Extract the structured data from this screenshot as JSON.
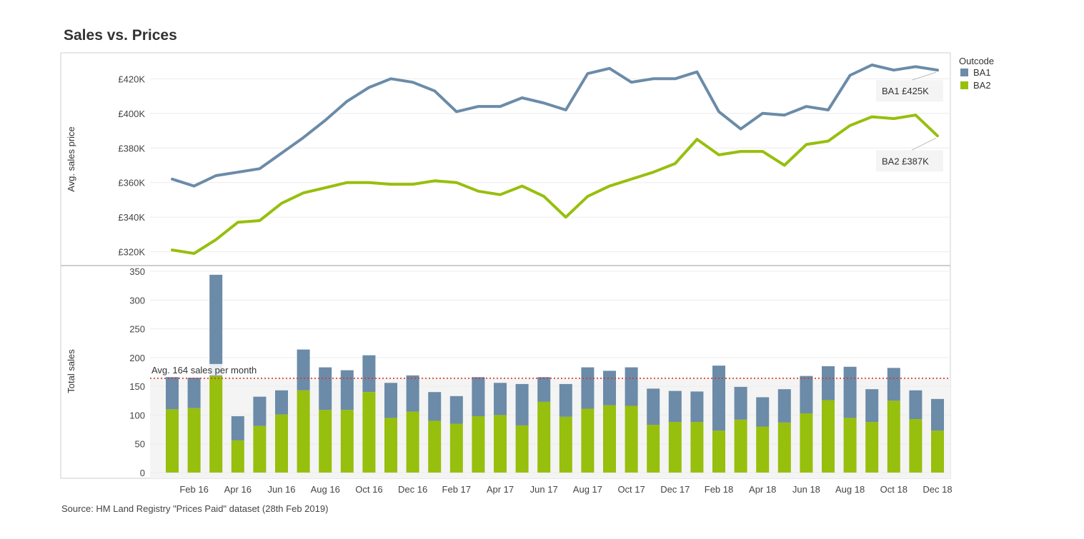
{
  "title": "Sales vs. Prices",
  "source": "Source: HM Land Registry \"Prices Paid\" dataset (28th Feb 2019)",
  "legend": {
    "title": "Outcode",
    "items": [
      {
        "label": "BA1",
        "color": "#6b8ba8"
      },
      {
        "label": "BA2",
        "color": "#97bf0d"
      }
    ]
  },
  "chart_data": [
    {
      "type": "line",
      "ylabel": "Avg. sales price",
      "ylim": [
        312,
        435
      ],
      "yticks": [
        {
          "value": 320,
          "label": "£320K"
        },
        {
          "value": 340,
          "label": "£340K"
        },
        {
          "value": 360,
          "label": "£360K"
        },
        {
          "value": 380,
          "label": "£380K"
        },
        {
          "value": 400,
          "label": "£400K"
        },
        {
          "value": 420,
          "label": "£420K"
        }
      ],
      "x": [
        "Jan 16",
        "Feb 16",
        "Mar 16",
        "Apr 16",
        "May 16",
        "Jun 16",
        "Jul 16",
        "Aug 16",
        "Sep 16",
        "Oct 16",
        "Nov 16",
        "Dec 16",
        "Jan 17",
        "Feb 17",
        "Mar 17",
        "Apr 17",
        "May 17",
        "Jun 17",
        "Jul 17",
        "Aug 17",
        "Sep 17",
        "Oct 17",
        "Nov 17",
        "Dec 17",
        "Jan 18",
        "Feb 18",
        "Mar 18",
        "Apr 18",
        "May 18",
        "Jun 18",
        "Jul 18",
        "Aug 18",
        "Sep 18",
        "Oct 18",
        "Nov 18",
        "Dec 18"
      ],
      "series": [
        {
          "name": "BA1",
          "color": "#6b8ba8",
          "values": [
            362,
            358,
            364,
            366,
            368,
            377,
            386,
            396,
            407,
            415,
            420,
            418,
            413,
            401,
            404,
            404,
            409,
            406,
            402,
            423,
            426,
            418,
            420,
            420,
            424,
            401,
            391,
            400,
            399,
            404,
            402,
            422,
            428,
            425,
            427,
            425
          ]
        },
        {
          "name": "BA2",
          "color": "#97bf0d",
          "values": [
            321,
            319,
            327,
            337,
            338,
            348,
            354,
            357,
            360,
            360,
            359,
            359,
            361,
            360,
            355,
            353,
            358,
            352,
            340,
            352,
            358,
            362,
            366,
            371,
            385,
            376,
            378,
            378,
            370,
            382,
            384,
            393,
            398,
            397,
            399,
            387
          ]
        }
      ],
      "annotations": [
        {
          "series": "BA1",
          "label": "BA1 £425K"
        },
        {
          "series": "BA2",
          "label": "BA2 £387K"
        }
      ]
    },
    {
      "type": "bar",
      "stacked": true,
      "ylabel": "Total sales",
      "ylim": [
        -10,
        360
      ],
      "yticks": [
        {
          "value": 0,
          "label": "0"
        },
        {
          "value": 50,
          "label": "50"
        },
        {
          "value": 100,
          "label": "100"
        },
        {
          "value": 150,
          "label": "150"
        },
        {
          "value": 200,
          "label": "200"
        },
        {
          "value": 250,
          "label": "250"
        },
        {
          "value": 300,
          "label": "300"
        },
        {
          "value": 350,
          "label": "350"
        }
      ],
      "categories": [
        "Jan 16",
        "Feb 16",
        "Mar 16",
        "Apr 16",
        "May 16",
        "Jun 16",
        "Jul 16",
        "Aug 16",
        "Sep 16",
        "Oct 16",
        "Nov 16",
        "Dec 16",
        "Jan 17",
        "Feb 17",
        "Mar 17",
        "Apr 17",
        "May 17",
        "Jun 17",
        "Jul 17",
        "Aug 17",
        "Sep 17",
        "Oct 17",
        "Nov 17",
        "Dec 17",
        "Jan 18",
        "Feb 18",
        "Mar 18",
        "Apr 18",
        "May 18",
        "Jun 18",
        "Jul 18",
        "Aug 18",
        "Sep 18",
        "Oct 18",
        "Nov 18",
        "Dec 18"
      ],
      "series": [
        {
          "name": "BA2",
          "color": "#97bf0d",
          "values": [
            110,
            112,
            168,
            56,
            81,
            101,
            143,
            109,
            109,
            140,
            95,
            106,
            90,
            85,
            98,
            100,
            82,
            123,
            97,
            111,
            117,
            116,
            83,
            88,
            88,
            73,
            92,
            80,
            87,
            103,
            126,
            95,
            88,
            125,
            93,
            73
          ]
        },
        {
          "name": "BA1",
          "color": "#6b8ba8",
          "values": [
            56,
            53,
            176,
            42,
            51,
            42,
            71,
            74,
            69,
            64,
            61,
            63,
            50,
            48,
            68,
            56,
            72,
            43,
            57,
            72,
            60,
            67,
            63,
            54,
            53,
            113,
            57,
            51,
            58,
            65,
            59,
            89,
            57,
            57,
            50,
            55
          ]
        }
      ],
      "reference_line": {
        "value": 164,
        "label": "Avg. 164 sales per month",
        "color": "#d9342b"
      },
      "xticks": [
        "Feb 16",
        "Apr 16",
        "Jun 16",
        "Aug 16",
        "Oct 16",
        "Dec 16",
        "Feb 17",
        "Apr 17",
        "Jun 17",
        "Aug 17",
        "Oct 17",
        "Dec 17",
        "Feb 18",
        "Apr 18",
        "Jun 18",
        "Aug 18",
        "Oct 18",
        "Dec 18"
      ]
    }
  ]
}
